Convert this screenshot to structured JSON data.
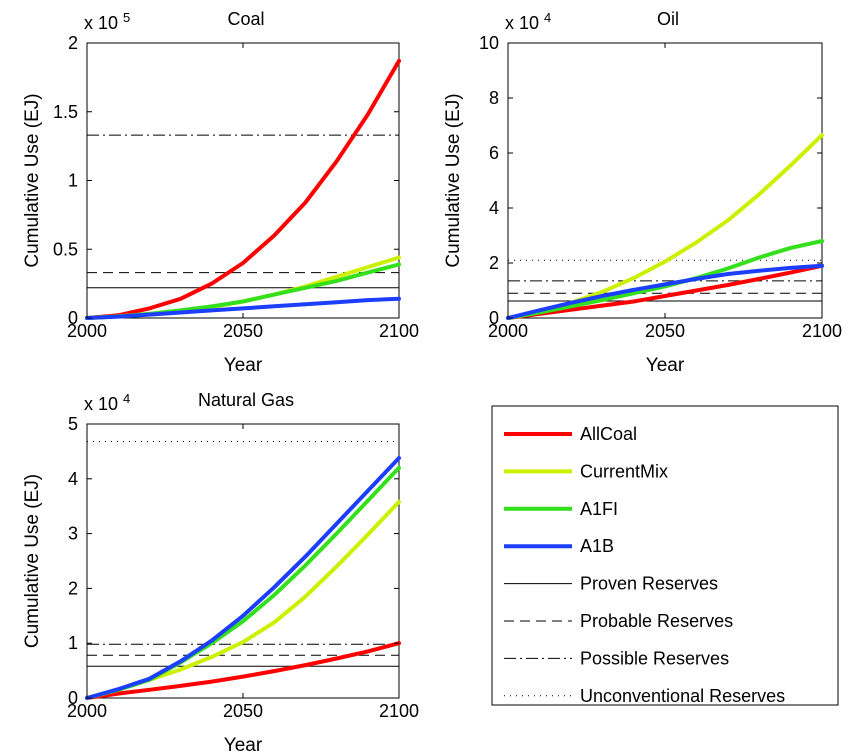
{
  "chart_data": [
    {
      "type": "line",
      "title": "Coal",
      "xlabel": "Year",
      "ylabel": "Cumulative Use (EJ)",
      "multiplier": "x 10",
      "exponent": "5",
      "xlim": [
        2000,
        2100
      ],
      "ylim": [
        0,
        2
      ],
      "xticks": [
        "2000",
        "2050",
        "2100"
      ],
      "yticks": [
        "0",
        "0.5",
        "1",
        "1.5",
        "2"
      ],
      "x": [
        2000,
        2010,
        2020,
        2030,
        2040,
        2050,
        2060,
        2070,
        2080,
        2090,
        2100
      ],
      "series": [
        {
          "name": "AllCoal",
          "values": [
            0,
            0.02,
            0.07,
            0.14,
            0.25,
            0.4,
            0.6,
            0.84,
            1.14,
            1.48,
            1.87
          ]
        },
        {
          "name": "CurrentMix",
          "values": [
            0,
            0.012,
            0.03,
            0.05,
            0.08,
            0.12,
            0.17,
            0.23,
            0.3,
            0.37,
            0.44
          ]
        },
        {
          "name": "A1FI",
          "values": [
            0,
            0.012,
            0.03,
            0.055,
            0.085,
            0.12,
            0.17,
            0.22,
            0.27,
            0.33,
            0.39
          ]
        },
        {
          "name": "A1B",
          "values": [
            0,
            0.01,
            0.025,
            0.04,
            0.055,
            0.07,
            0.085,
            0.1,
            0.115,
            0.13,
            0.14
          ]
        }
      ],
      "reserves": {
        "proven": 0.22,
        "probable": 0.33,
        "possible": 1.33
      }
    },
    {
      "type": "line",
      "title": "Oil",
      "xlabel": "Year",
      "ylabel": "Cumulative Use (EJ)",
      "multiplier": "x 10",
      "exponent": "4",
      "xlim": [
        2000,
        2100
      ],
      "ylim": [
        0,
        10
      ],
      "xticks": [
        "2000",
        "2050",
        "2100"
      ],
      "yticks": [
        "0",
        "2",
        "4",
        "6",
        "8",
        "10"
      ],
      "x": [
        2000,
        2010,
        2020,
        2030,
        2040,
        2050,
        2060,
        2070,
        2080,
        2090,
        2100
      ],
      "series": [
        {
          "name": "AllCoal",
          "values": [
            0,
            0.15,
            0.3,
            0.45,
            0.6,
            0.8,
            1.0,
            1.2,
            1.42,
            1.65,
            1.9
          ]
        },
        {
          "name": "CurrentMix",
          "values": [
            0,
            0.25,
            0.55,
            0.95,
            1.45,
            2.05,
            2.75,
            3.55,
            4.5,
            5.55,
            6.65
          ]
        },
        {
          "name": "A1FI",
          "values": [
            0,
            0.2,
            0.42,
            0.65,
            0.9,
            1.15,
            1.45,
            1.8,
            2.2,
            2.55,
            2.8
          ]
        },
        {
          "name": "A1B",
          "values": [
            0,
            0.28,
            0.55,
            0.8,
            1.02,
            1.22,
            1.42,
            1.6,
            1.72,
            1.82,
            1.9
          ]
        }
      ],
      "reserves": {
        "proven": 0.62,
        "probable": 0.9,
        "possible": 1.35,
        "unconventional": 2.1
      }
    },
    {
      "type": "line",
      "title": "Natural Gas",
      "xlabel": "Year",
      "ylabel": "Cumulative Use (EJ)",
      "multiplier": "x 10",
      "exponent": "4",
      "xlim": [
        2000,
        2100
      ],
      "ylim": [
        0,
        5
      ],
      "xticks": [
        "2000",
        "2050",
        "2100"
      ],
      "yticks": [
        "0",
        "1",
        "2",
        "3",
        "4",
        "5"
      ],
      "x": [
        2000,
        2010,
        2020,
        2030,
        2040,
        2050,
        2060,
        2070,
        2080,
        2090,
        2100
      ],
      "series": [
        {
          "name": "AllCoal",
          "values": [
            0,
            0.08,
            0.15,
            0.22,
            0.3,
            0.39,
            0.49,
            0.6,
            0.72,
            0.85,
            1.0
          ]
        },
        {
          "name": "CurrentMix",
          "values": [
            0,
            0.15,
            0.33,
            0.52,
            0.75,
            1.02,
            1.38,
            1.85,
            2.4,
            2.98,
            3.58
          ]
        },
        {
          "name": "A1FI",
          "values": [
            0,
            0.15,
            0.33,
            0.65,
            1.0,
            1.4,
            1.88,
            2.42,
            3.0,
            3.6,
            4.2
          ]
        },
        {
          "name": "A1B",
          "values": [
            0,
            0.16,
            0.35,
            0.67,
            1.05,
            1.5,
            2.02,
            2.58,
            3.18,
            3.78,
            4.38
          ]
        }
      ],
      "reserves": {
        "proven": 0.58,
        "probable": 0.78,
        "possible": 0.98,
        "unconventional": 4.68
      }
    }
  ],
  "legend": {
    "entries": [
      {
        "label": "AllCoal",
        "style": "solid-thick",
        "color": "#ff0000"
      },
      {
        "label": "CurrentMix",
        "style": "solid-thick",
        "color": "#ccf000"
      },
      {
        "label": "A1FI",
        "style": "solid-thick",
        "color": "#33e01b"
      },
      {
        "label": "A1B",
        "style": "solid-thick",
        "color": "#1c3fff"
      },
      {
        "label": "Proven Reserves",
        "style": "solid",
        "color": "#000000"
      },
      {
        "label": "Probable Reserves",
        "style": "dashed",
        "color": "#000000"
      },
      {
        "label": "Possible Reserves",
        "style": "dashdot",
        "color": "#000000"
      },
      {
        "label": "Unconventional Reserves",
        "style": "dotted",
        "color": "#000000"
      }
    ]
  },
  "colors": {
    "AllCoal": "#ff0000",
    "CurrentMix": "#ccf000",
    "A1FI": "#33e01b",
    "A1B": "#1c3fff"
  }
}
